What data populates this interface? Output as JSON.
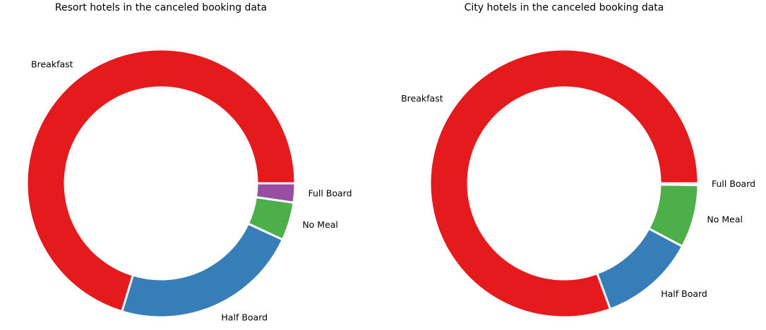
{
  "chart_data": [
    {
      "type": "pie",
      "donut": true,
      "title": "Resort hotels in the canceled booking data",
      "categories": [
        "Breakfast",
        "Half Board",
        "No Meal",
        "Full Board"
      ],
      "values": [
        70.3,
        22.8,
        4.6,
        2.3
      ],
      "colors": [
        "#e41a1c",
        "#377eb8",
        "#4daf4a",
        "#984ea3"
      ],
      "start_angle_deg": 0,
      "direction": "counterclockwise"
    },
    {
      "type": "pie",
      "donut": true,
      "title": "City hotels in the canceled booking data",
      "categories": [
        "Breakfast",
        "Half Board",
        "No Meal",
        "Full Board"
      ],
      "values": [
        80.6,
        11.6,
        7.6,
        0.2
      ],
      "colors": [
        "#e41a1c",
        "#377eb8",
        "#4daf4a",
        "#984ea3"
      ],
      "start_angle_deg": 0,
      "direction": "counterclockwise"
    }
  ]
}
